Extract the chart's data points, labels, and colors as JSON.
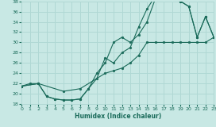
{
  "xlabel": "Humidex (Indice chaleur)",
  "bg_color": "#c8e8e4",
  "grid_color": "#b0d8d4",
  "line_color": "#1a6b5a",
  "xlim": [
    0,
    23
  ],
  "ylim": [
    18,
    38
  ],
  "xticks": [
    0,
    1,
    2,
    3,
    4,
    5,
    6,
    7,
    8,
    9,
    10,
    11,
    12,
    13,
    14,
    15,
    16,
    17,
    18,
    19,
    20,
    21,
    22,
    23
  ],
  "yticks": [
    18,
    20,
    22,
    24,
    26,
    28,
    30,
    32,
    34,
    36,
    38
  ],
  "curve1_x": [
    0,
    1,
    2,
    3,
    4,
    5,
    6,
    7,
    8,
    9,
    10,
    11,
    12,
    13,
    14,
    15,
    16,
    17,
    18,
    19,
    20,
    21,
    22,
    23
  ],
  "curve1_y": [
    21.5,
    22,
    22,
    19.5,
    19,
    18.8,
    18.8,
    19,
    21,
    24,
    26,
    30,
    31,
    30,
    31.5,
    34,
    38.5,
    39,
    38.5,
    38,
    37,
    31,
    35,
    31
  ],
  "curve2_x": [
    0,
    2,
    3,
    4,
    5,
    6,
    7,
    8,
    9,
    10,
    11,
    12,
    13,
    14,
    15,
    16,
    17,
    18,
    19,
    20,
    21,
    22,
    23
  ],
  "curve2_y": [
    21.5,
    22,
    19.5,
    19,
    18.8,
    18.8,
    19,
    21,
    23,
    27,
    26,
    28,
    29,
    33,
    36.5,
    39,
    39,
    38.5,
    38,
    37,
    31,
    35,
    31
  ],
  "curve3_x": [
    0,
    2,
    5,
    7,
    10,
    11,
    12,
    13,
    14,
    15,
    16,
    17,
    18,
    19,
    20,
    21,
    22,
    23
  ],
  "curve3_y": [
    21.5,
    22,
    20.5,
    21,
    24,
    24.5,
    25,
    26,
    27.5,
    30,
    30,
    30,
    30,
    30,
    30,
    30,
    30,
    31
  ]
}
